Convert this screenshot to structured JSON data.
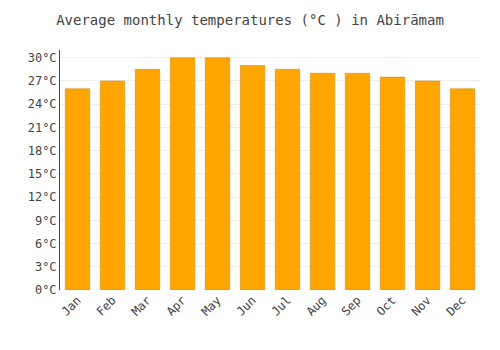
{
  "chart_data": {
    "type": "bar",
    "title": "Average monthly temperatures (°C ) in Abirāmam",
    "categories": [
      "Jan",
      "Feb",
      "Mar",
      "Apr",
      "May",
      "Jun",
      "Jul",
      "Aug",
      "Sep",
      "Oct",
      "Nov",
      "Dec"
    ],
    "values": [
      26.0,
      27.0,
      28.5,
      30.0,
      30.0,
      29.0,
      28.5,
      28.0,
      28.0,
      27.5,
      27.0,
      26.0
    ],
    "color": "#FFA500",
    "ylim": [
      0,
      31
    ],
    "yticks": [
      {
        "value": 0,
        "label": "0°C"
      },
      {
        "value": 3,
        "label": "3°C"
      },
      {
        "value": 6,
        "label": "6°C"
      },
      {
        "value": 9,
        "label": "9°C"
      },
      {
        "value": 12,
        "label": "12°C"
      },
      {
        "value": 15,
        "label": "15°C"
      },
      {
        "value": 18,
        "label": "18°C"
      },
      {
        "value": 21,
        "label": "21°C"
      },
      {
        "value": 24,
        "label": "24°C"
      },
      {
        "value": 27,
        "label": "27°C"
      },
      {
        "value": 30,
        "label": "30°C"
      }
    ],
    "grid": true
  }
}
